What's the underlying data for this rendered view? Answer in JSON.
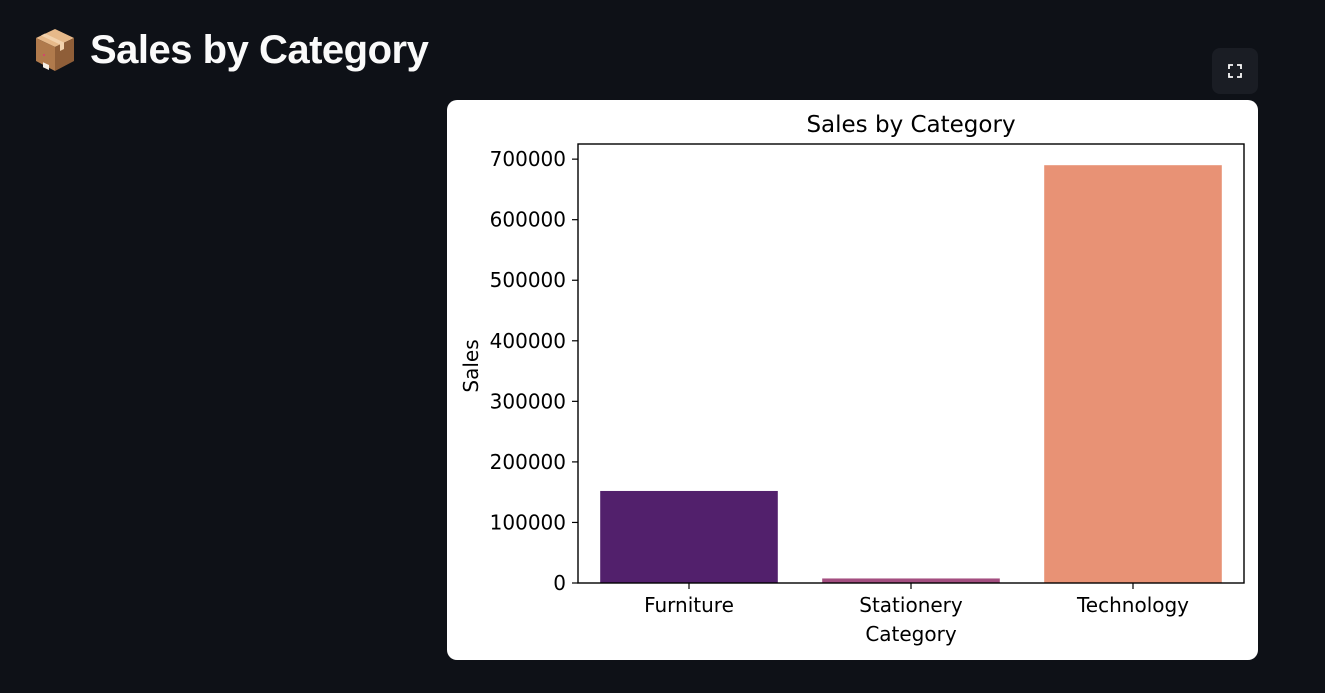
{
  "page": {
    "title": "Sales by Category",
    "title_icon": "package-icon"
  },
  "toolbar": {
    "fullscreen_icon": "fullscreen-icon"
  },
  "colors": {
    "background": "#0e1117",
    "title_text": "#fafafa",
    "card": "#ffffff"
  },
  "chart_data": {
    "type": "bar",
    "title": "Sales by Category",
    "xlabel": "Category",
    "ylabel": "Sales",
    "categories": [
      "Furniture",
      "Stationery",
      "Technology"
    ],
    "values": [
      152000,
      7500,
      690000
    ],
    "colors": [
      "#52206c",
      "#a34e80",
      "#e89275"
    ],
    "ylim": [
      0,
      725000
    ],
    "yticks": [
      0,
      100000,
      200000,
      300000,
      400000,
      500000,
      600000,
      700000
    ],
    "grid": false,
    "legend": "none"
  }
}
